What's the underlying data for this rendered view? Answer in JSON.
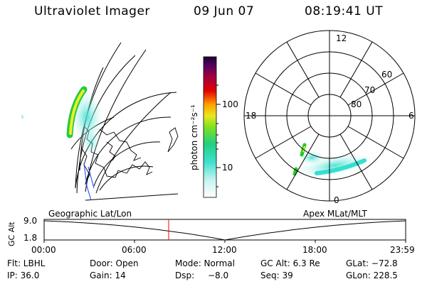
{
  "header": {
    "title": "Ultraviolet Imager",
    "date": "09 Jun 07",
    "time": "08:19:41 UT"
  },
  "colorbar": {
    "label": "photon cm⁻²s⁻¹",
    "ticks": [
      "100",
      "10"
    ]
  },
  "polar": {
    "lat_labels": [
      "80",
      "70",
      "60"
    ],
    "mlt_labels": {
      "top": "12",
      "left": "18",
      "right": "6",
      "bottom": "0"
    }
  },
  "altitude_plot": {
    "ylabel": "GC Alt",
    "left_label": "Geographic Lat/Lon",
    "right_label": "Apex MLat/MLT",
    "y_ticks": [
      "9.0",
      "1.8"
    ],
    "x_ticks": [
      "00:00",
      "06:00",
      "12:00",
      "18:00",
      "23:59"
    ],
    "marker_color": "#ff0000",
    "marker_time_hours": 8.33
  },
  "info": {
    "row1": [
      "Flt: LBHL",
      "Door: Open",
      "Mode: Normal",
      "GC Alt: 6.3 Re",
      "GLat: −72.8"
    ],
    "row2": [
      "IP: 36.0",
      "Gain: 14",
      "Dsp:",
      "−8.0",
      "Seq: 39",
      "GLon: 228.5"
    ]
  },
  "colors": {
    "aurora_cyan": "#33e0d0",
    "aurora_light": "#b8f0ec",
    "aurora_green": "#22cc22",
    "aurora_yellow": "#eeee22",
    "map_blue": "#1040ff"
  }
}
